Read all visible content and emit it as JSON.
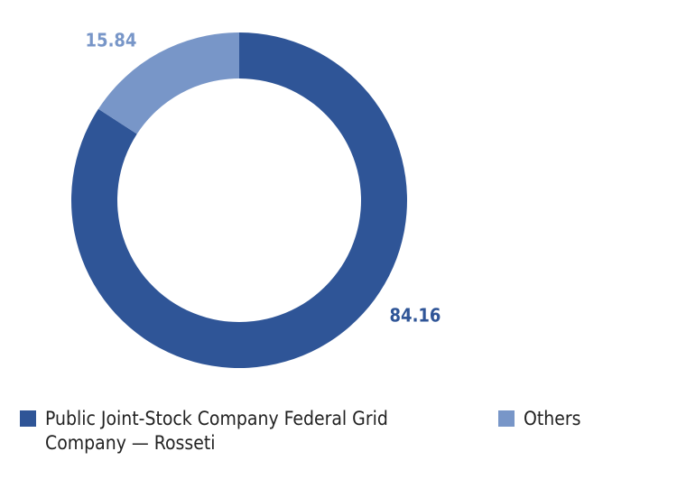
{
  "chart_data": {
    "type": "pie",
    "categories": [
      "Public Joint-Stock Company Federal Grid Company — Rosseti",
      "Others"
    ],
    "values": [
      84.16,
      15.84
    ],
    "colors": [
      "#2f5597",
      "#7896c8"
    ]
  }
}
